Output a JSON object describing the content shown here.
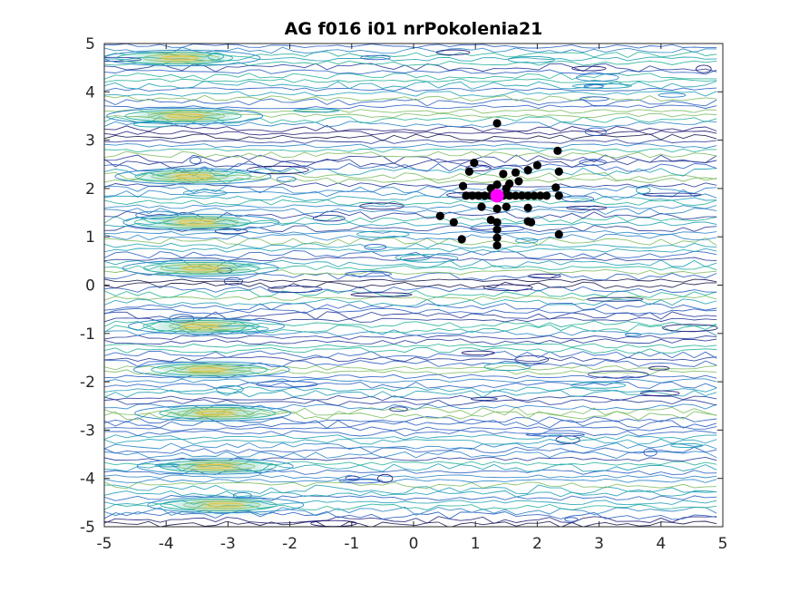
{
  "chart_data": {
    "type": "scatter",
    "title": "AG f016 i01 nrPokolenia21",
    "xlabel": "",
    "ylabel": "",
    "xlim": [
      -5,
      5
    ],
    "ylim": [
      -5,
      5
    ],
    "xticks": [
      "-5",
      "-4",
      "-3",
      "-2",
      "-1",
      "0",
      "1",
      "2",
      "3",
      "4",
      "5"
    ],
    "yticks": [
      "-5",
      "-4",
      "-3",
      "-2",
      "-1",
      "0",
      "1",
      "2",
      "3",
      "4",
      "5"
    ],
    "grid": false,
    "legend": "none",
    "background": "contour plot of objective function (horizontal banded isolines)",
    "contour_hotspots": [
      {
        "x": -3.8,
        "y": 4.7
      },
      {
        "x": -3.7,
        "y": 3.5
      },
      {
        "x": -3.6,
        "y": 2.25
      },
      {
        "x": -3.5,
        "y": 1.3
      },
      {
        "x": -3.4,
        "y": 0.35
      },
      {
        "x": -3.4,
        "y": -0.85
      },
      {
        "x": -3.3,
        "y": -1.75
      },
      {
        "x": -3.2,
        "y": -2.65
      },
      {
        "x": -3.2,
        "y": -3.75
      },
      {
        "x": -3.1,
        "y": -4.55
      }
    ],
    "series": [
      {
        "color": "#000000",
        "marker": "filled-circle",
        "points": [
          [
            1.35,
            3.35
          ],
          [
            0.98,
            2.53
          ],
          [
            0.9,
            2.35
          ],
          [
            2.0,
            2.48
          ],
          [
            2.33,
            2.78
          ],
          [
            1.85,
            2.38
          ],
          [
            1.65,
            2.33
          ],
          [
            2.35,
            2.35
          ],
          [
            1.45,
            2.3
          ],
          [
            1.7,
            2.15
          ],
          [
            1.55,
            2.1
          ],
          [
            0.8,
            2.05
          ],
          [
            1.25,
            2.0
          ],
          [
            1.35,
            2.08
          ],
          [
            1.5,
            2.0
          ],
          [
            2.3,
            2.02
          ],
          [
            0.85,
            1.85
          ],
          [
            0.95,
            1.85
          ],
          [
            1.05,
            1.85
          ],
          [
            1.15,
            1.85
          ],
          [
            1.25,
            1.85
          ],
          [
            1.45,
            1.85
          ],
          [
            1.55,
            1.85
          ],
          [
            1.65,
            1.85
          ],
          [
            1.75,
            1.85
          ],
          [
            1.85,
            1.85
          ],
          [
            1.95,
            1.85
          ],
          [
            2.05,
            1.85
          ],
          [
            2.15,
            1.85
          ],
          [
            2.35,
            1.85
          ],
          [
            1.1,
            1.62
          ],
          [
            1.35,
            1.58
          ],
          [
            1.5,
            1.62
          ],
          [
            1.85,
            1.6
          ],
          [
            0.43,
            1.43
          ],
          [
            1.25,
            1.35
          ],
          [
            1.35,
            1.3
          ],
          [
            1.85,
            1.32
          ],
          [
            1.9,
            1.3
          ],
          [
            0.65,
            1.3
          ],
          [
            1.35,
            1.15
          ],
          [
            2.35,
            1.05
          ],
          [
            0.78,
            0.95
          ],
          [
            1.35,
            0.98
          ],
          [
            1.35,
            0.82
          ]
        ]
      },
      {
        "color": "#ff00ff",
        "marker": "large-filled-circle",
        "points": [
          [
            1.35,
            1.85
          ]
        ]
      }
    ]
  }
}
